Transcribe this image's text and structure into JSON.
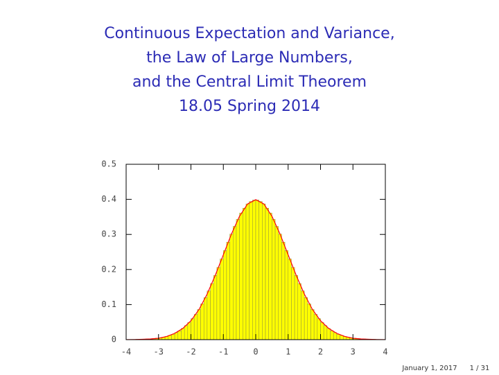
{
  "slide": {
    "title": [
      "Continuous Expectation and Variance,",
      "the Law of Large Numbers,",
      "and the Central Limit Theorem",
      "18.05 Spring 2014"
    ],
    "date": "January 1, 2017",
    "page": "1 / 31"
  },
  "chart_data": {
    "type": "histogram",
    "bins": [
      -4,
      -3.9,
      -3.8,
      -3.7,
      -3.6,
      -3.5,
      -3.4,
      -3.3,
      -3.2,
      -3.1,
      -3,
      -2.9,
      -2.8,
      -2.7,
      -2.6,
      -2.5,
      -2.4,
      -2.3,
      -2.2,
      -2.1,
      -2,
      -1.9,
      -1.8,
      -1.7,
      -1.6,
      -1.5,
      -1.4,
      -1.3,
      -1.2,
      -1.1,
      -1,
      -0.9,
      -0.8,
      -0.7,
      -0.6,
      -0.5,
      -0.4,
      -0.3,
      -0.2,
      -0.1,
      0,
      0.1,
      0.2,
      0.3,
      0.4,
      0.5,
      0.6,
      0.7,
      0.8,
      0.9,
      1,
      1.1,
      1.2,
      1.3,
      1.4,
      1.5,
      1.6,
      1.7,
      1.8,
      1.9,
      2,
      2.1,
      2.2,
      2.3,
      2.4,
      2.5,
      2.6,
      2.7,
      2.8,
      2.9,
      3,
      3.1,
      3.2,
      3.3,
      3.4,
      3.5,
      3.6,
      3.7,
      3.8,
      3.9,
      4
    ],
    "values": [
      0,
      0,
      0,
      0.001,
      0.001,
      0.001,
      0.002,
      0.002,
      0.003,
      0.004,
      0.005,
      0.007,
      0.009,
      0.012,
      0.015,
      0.02,
      0.025,
      0.032,
      0.04,
      0.049,
      0.06,
      0.072,
      0.086,
      0.102,
      0.12,
      0.139,
      0.16,
      0.183,
      0.206,
      0.23,
      0.254,
      0.278,
      0.301,
      0.323,
      0.343,
      0.361,
      0.375,
      0.387,
      0.394,
      0.398,
      0.398,
      0.394,
      0.387,
      0.375,
      0.361,
      0.343,
      0.323,
      0.301,
      0.278,
      0.254,
      0.23,
      0.206,
      0.183,
      0.16,
      0.139,
      0.12,
      0.102,
      0.086,
      0.072,
      0.06,
      0.049,
      0.04,
      0.032,
      0.025,
      0.02,
      0.015,
      0.012,
      0.009,
      0.007,
      0.005,
      0.004,
      0.003,
      0.002,
      0.002,
      0.001,
      0.001,
      0.001,
      0,
      0,
      0
    ],
    "color": "#ffff00",
    "curve": {
      "x": [
        -4,
        -3.75,
        -3.5,
        -3.25,
        -3,
        -2.75,
        -2.5,
        -2.25,
        -2,
        -1.75,
        -1.5,
        -1.25,
        -1,
        -0.75,
        -0.5,
        -0.25,
        0,
        0.25,
        0.5,
        0.75,
        1,
        1.25,
        1.5,
        1.75,
        2,
        2.25,
        2.5,
        2.75,
        3,
        3.25,
        3.5,
        3.75,
        4
      ],
      "values": [
        0.0001,
        0.0004,
        0.001,
        0.002,
        0.004,
        0.009,
        0.018,
        0.032,
        0.054,
        0.086,
        0.13,
        0.183,
        0.242,
        0.301,
        0.352,
        0.387,
        0.399,
        0.387,
        0.352,
        0.301,
        0.242,
        0.183,
        0.13,
        0.086,
        0.054,
        0.032,
        0.018,
        0.009,
        0.004,
        0.002,
        0.001,
        0.0004,
        0.0001
      ],
      "color": "#ff0000"
    },
    "xlim": [
      -4,
      4
    ],
    "ylim": [
      0,
      0.5
    ],
    "xticks": [
      -4,
      -3,
      -2,
      -1,
      0,
      1,
      2,
      3,
      4
    ],
    "yticks": [
      0,
      0.1,
      0.2,
      0.3,
      0.4,
      0.5
    ]
  }
}
